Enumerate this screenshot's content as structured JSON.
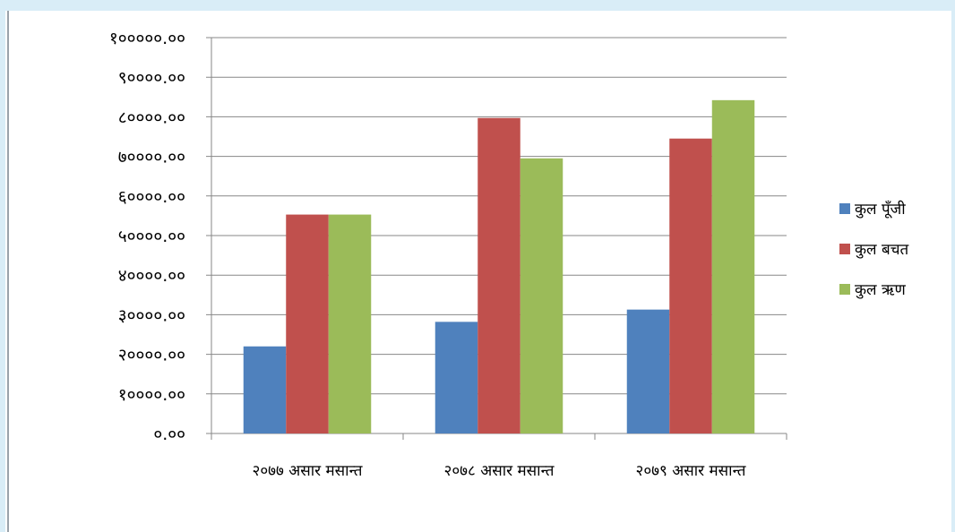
{
  "chart_data": {
    "type": "bar",
    "categories": [
      "२०७७ असार मसान्त",
      "२०७८ असार मसान्त",
      "२०७९ असार मसान्त"
    ],
    "series": [
      {
        "name": "कुल पूँजी",
        "color": "#4f81bd",
        "values": [
          22000,
          28200,
          31300
        ]
      },
      {
        "name": "कुल बचत",
        "color": "#c0504d",
        "values": [
          55300,
          79700,
          74500
        ]
      },
      {
        "name": "कुल ऋण",
        "color": "#9bbb59",
        "values": [
          55300,
          69500,
          84200
        ]
      }
    ],
    "ylim": [
      0,
      100000
    ],
    "yticks": [
      {
        "value": 0,
        "label": "०.००"
      },
      {
        "value": 10000,
        "label": "१००००.००"
      },
      {
        "value": 20000,
        "label": "२००००.००"
      },
      {
        "value": 30000,
        "label": "३००००.००"
      },
      {
        "value": 40000,
        "label": "४००००.००"
      },
      {
        "value": 50000,
        "label": "५००००.००"
      },
      {
        "value": 60000,
        "label": "६००००.००"
      },
      {
        "value": 70000,
        "label": "७००००.००"
      },
      {
        "value": 80000,
        "label": "८००००.००"
      },
      {
        "value": 90000,
        "label": "९००००.००"
      },
      {
        "value": 100000,
        "label": "१०००००.००"
      }
    ],
    "grid": true,
    "legend_position": "right"
  }
}
